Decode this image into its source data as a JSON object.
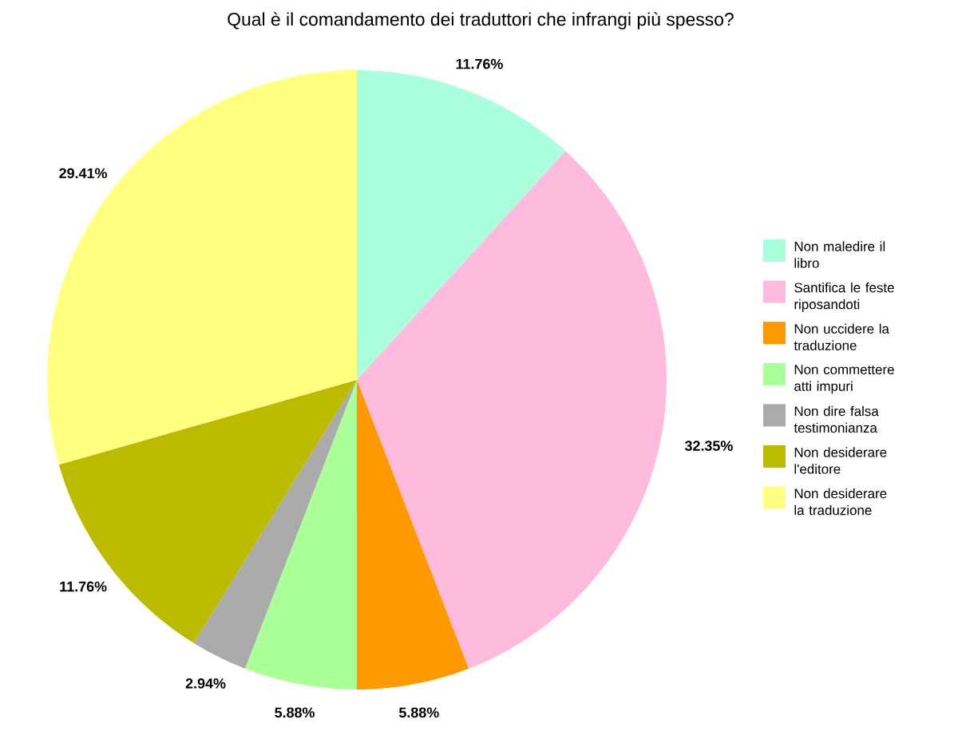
{
  "chart_data": {
    "type": "pie",
    "title": "Qual è il comandamento dei traduttori che infrangi più spesso?",
    "categories": [
      "Non maledire il libro",
      "Santifica le feste riposandoti",
      "Non uccidere la traduzione",
      "Non commettere atti impuri",
      "Non dire falsa testimonianza",
      "Non desiderare l'editore",
      "Non desiderare la traduzione"
    ],
    "values": [
      11.76,
      32.35,
      5.88,
      5.88,
      2.94,
      11.76,
      29.41
    ],
    "value_labels": [
      "11.76%",
      "32.35%",
      "5.88%",
      "5.88%",
      "2.94%",
      "11.76%",
      "29.41%"
    ],
    "colors": [
      "#aaffdd",
      "#ffbbdd",
      "#ff9900",
      "#aaff99",
      "#aaaaaa",
      "#bbbb00",
      "#ffff80"
    ],
    "legend": "right"
  }
}
